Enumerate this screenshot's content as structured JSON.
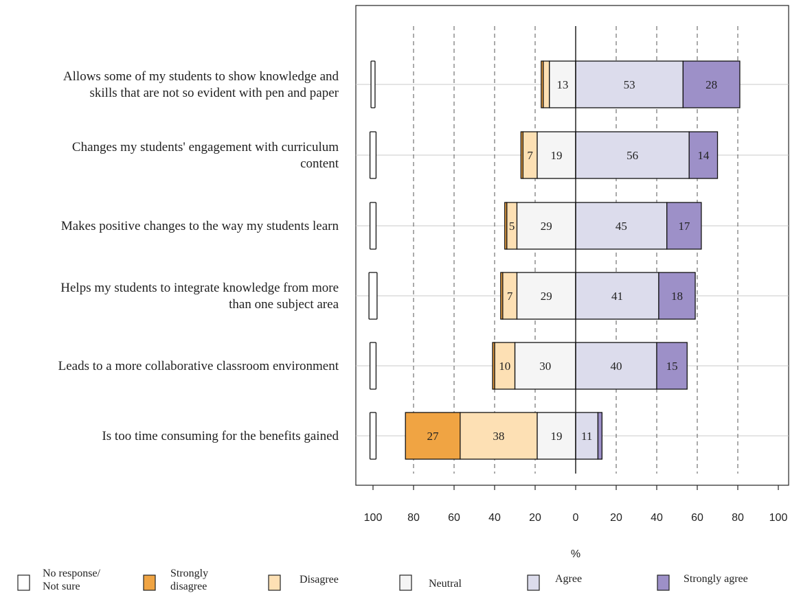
{
  "chart_data": {
    "type": "bar",
    "orientation": "horizontal-diverging",
    "xlabel": "%",
    "x_ticks": [
      "100",
      "80",
      "60",
      "40",
      "20",
      "0",
      "20",
      "40",
      "60",
      "80",
      "100"
    ],
    "xlim": [
      -100,
      100
    ],
    "grid": "vertical-dashed",
    "legend_position": "bottom",
    "categories": [
      "Allows some of my students to show knowledge and|skills that are not so evident with pen and paper",
      "Changes my students' engagement with curriculum|content",
      "Makes positive changes to the way my students learn",
      "Helps my students to integrate knowledge from more|than one subject area",
      "Leads to a more collaborative classroom environment",
      "Is too time consuming for the benefits gained"
    ],
    "series": [
      {
        "name": "No response/ Not sure",
        "color": "#ffffff",
        "values": [
          2,
          3,
          3,
          4,
          3,
          3
        ]
      },
      {
        "name": "Strongly disagree",
        "color": "#f0a443",
        "values": [
          1,
          1,
          1,
          1,
          1,
          27
        ]
      },
      {
        "name": "Disagree",
        "color": "#fde0b4",
        "values": [
          3,
          7,
          5,
          7,
          10,
          38
        ]
      },
      {
        "name": "Neutral",
        "color": "#f5f5f5",
        "values": [
          13,
          19,
          29,
          29,
          30,
          19
        ]
      },
      {
        "name": "Agree",
        "color": "#dcdcec",
        "values": [
          53,
          56,
          45,
          41,
          40,
          11
        ]
      },
      {
        "name": "Strongly agree",
        "color": "#9d90c8",
        "values": [
          28,
          14,
          17,
          18,
          15,
          2
        ]
      }
    ],
    "segment_labels": [
      [
        "",
        "",
        "",
        "13",
        "53",
        "28"
      ],
      [
        "",
        "",
        "7",
        "19",
        "56",
        "14"
      ],
      [
        "",
        "",
        "5",
        "29",
        "45",
        "17"
      ],
      [
        "",
        "",
        "7",
        "29",
        "41",
        "18"
      ],
      [
        "",
        "",
        "10",
        "30",
        "40",
        "15"
      ],
      [
        "",
        "27",
        "38",
        "19",
        "11",
        ""
      ]
    ],
    "legend": [
      {
        "label": "No response/|Not sure",
        "color": "#ffffff"
      },
      {
        "label": "Strongly|disagree",
        "color": "#f0a443"
      },
      {
        "label": "Disagree",
        "color": "#fde0b4"
      },
      {
        "label": "Neutral",
        "color": "#f5f5f5"
      },
      {
        "label": "Agree",
        "color": "#dcdcec"
      },
      {
        "label": "Strongly agree",
        "color": "#9d90c8"
      }
    ]
  }
}
